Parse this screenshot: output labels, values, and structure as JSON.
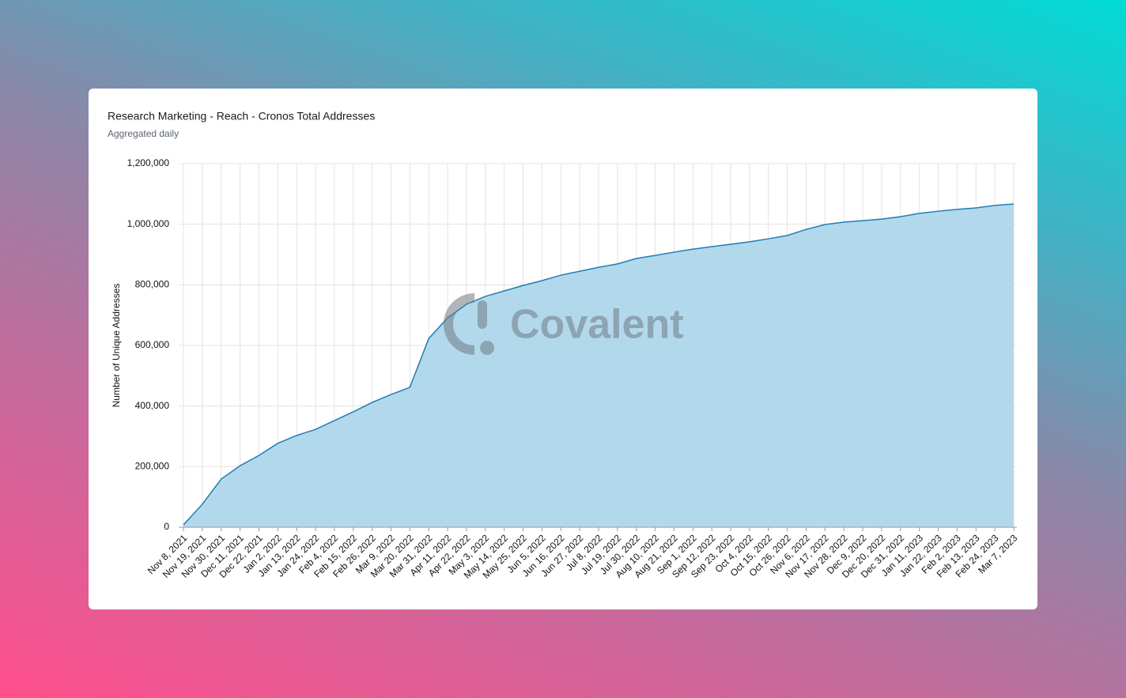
{
  "chart_data": {
    "type": "area",
    "title": "Research Marketing - Reach - Cronos Total Addresses",
    "subtitle": "Aggregated daily",
    "ylabel": "Number of Unique Addresses",
    "watermark": "Covalent",
    "color": "#1f7eb3",
    "fill": "#b2d8ec",
    "grid": true,
    "categories": [
      "Nov 8, 2021",
      "Nov 19, 2021",
      "Nov 30, 2021",
      "Dec 11, 2021",
      "Dec 22, 2021",
      "Jan 2, 2022",
      "Jan 13, 2022",
      "Jan 24, 2022",
      "Feb 4, 2022",
      "Feb 15, 2022",
      "Feb 26, 2022",
      "Mar 9, 2022",
      "Mar 20, 2022",
      "Mar 31, 2022",
      "Apr 11, 2022",
      "Apr 22, 2022",
      "May 3, 2022",
      "May 14, 2022",
      "May 25, 2022",
      "Jun 5, 2022",
      "Jun 16, 2022",
      "Jun 27, 2022",
      "Jul 8, 2022",
      "Jul 19, 2022",
      "Jul 30, 2022",
      "Aug 10, 2022",
      "Aug 21, 2022",
      "Sep 1, 2022",
      "Sep 12, 2022",
      "Sep 23, 2022",
      "Oct 4, 2022",
      "Oct 15, 2022",
      "Oct 26, 2022",
      "Nov 6, 2022",
      "Nov 17, 2022",
      "Nov 28, 2022",
      "Dec 9, 2022",
      "Dec 20, 2022",
      "Dec 31, 2022",
      "Jan 11, 2023",
      "Jan 22, 2023",
      "Feb 2, 2023",
      "Feb 13, 2023",
      "Feb 24, 2023",
      "Mar 7, 2023"
    ],
    "values": [
      8000,
      76000,
      159000,
      203000,
      237000,
      277000,
      303000,
      323000,
      352000,
      381000,
      412000,
      438000,
      462000,
      623000,
      691000,
      736000,
      762000,
      780000,
      798000,
      814000,
      832000,
      845000,
      858000,
      869000,
      887000,
      897000,
      908000,
      918000,
      926000,
      934000,
      942000,
      952000,
      963000,
      983000,
      999000,
      1007000,
      1012000,
      1017000,
      1025000,
      1036000,
      1043000,
      1049000,
      1054000,
      1062000,
      1067000
    ],
    "ylim": [
      0,
      1200000
    ],
    "yticks": [
      0,
      {
        "value": 200000,
        "label": "200,000"
      },
      {
        "value": 400000,
        "label": "400,000"
      },
      {
        "value": 600000,
        "label": "600,000"
      },
      {
        "value": 800000,
        "label": "800,000"
      },
      {
        "value": 1000000,
        "label": "1,000,000"
      },
      {
        "value": 1200000,
        "label": "1,200,000"
      }
    ]
  }
}
